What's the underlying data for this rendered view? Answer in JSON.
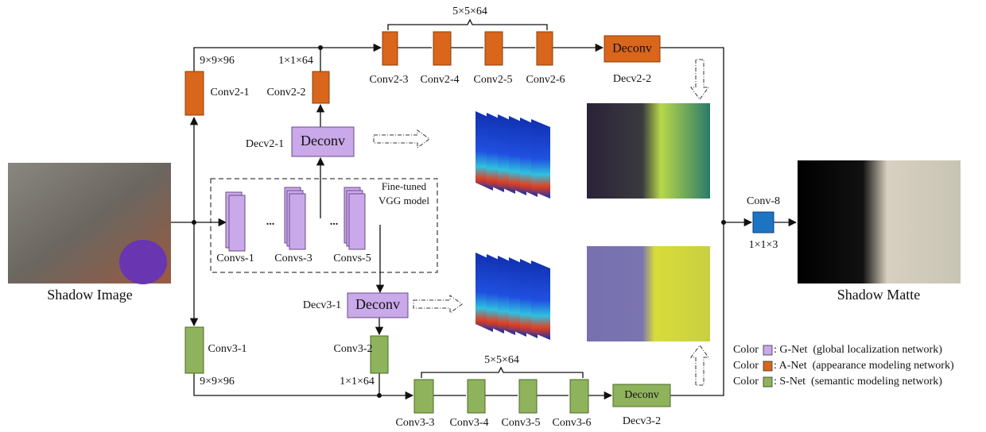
{
  "images": {
    "input": "Shadow Image",
    "output": "Shadow Matte"
  },
  "a_net": {
    "blocks": [
      "Conv2-1",
      "Conv2-2",
      "Conv2-3",
      "Conv2-4",
      "Conv2-5",
      "Conv2-6"
    ],
    "dims": [
      "9×9×96",
      "1×1×64",
      "5×5×64"
    ],
    "deconv": {
      "text": "Deconv",
      "label": "Decv2-2"
    }
  },
  "g_net": {
    "blocks": [
      "Convs-1",
      "Convs-3",
      "Convs-5"
    ],
    "ellipsis": [
      "...",
      "..."
    ],
    "box_label": [
      "Fine-tuned",
      "VGG model"
    ],
    "deconvs": [
      {
        "text": "Deconv",
        "label": "Decv2-1"
      },
      {
        "text": "Deconv",
        "label": "Decv3-1"
      }
    ]
  },
  "s_net": {
    "blocks": [
      "Conv3-1",
      "Conv3-2",
      "Conv3-3",
      "Conv3-4",
      "Conv3-5",
      "Conv3-6"
    ],
    "dims": [
      "9×9×96",
      "1×1×64",
      "5×5×64"
    ],
    "deconv": {
      "text": "Deconv",
      "label": "Decv3-2"
    }
  },
  "fusion": {
    "label": "Conv-8",
    "dims": "1×1×3"
  },
  "legend": [
    {
      "prefix": "Color",
      "text": ": G-Net  (global localization network)",
      "color": "#c9a9e9"
    },
    {
      "prefix": "Color",
      "text": ": A-Net  (appearance modeling network)",
      "color": "#d9661b"
    },
    {
      "prefix": "Color",
      "text": ": S-Net  (semantic modeling network)",
      "color": "#8eb35c"
    }
  ]
}
